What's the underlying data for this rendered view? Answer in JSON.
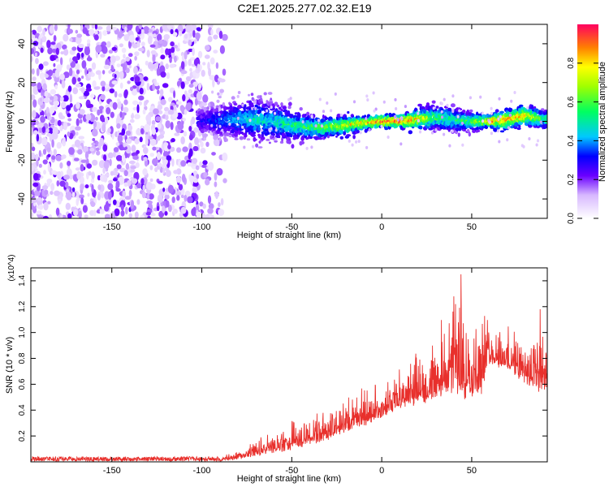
{
  "title": "C2E1.2025.277.02.32.E19",
  "colorbar": {
    "label": "Normalized spectral amplitude",
    "range": [
      0,
      1
    ],
    "ticks": [
      0.0,
      0.2,
      0.4,
      0.6,
      0.8
    ],
    "tick_labels": [
      "0.0",
      "0.2",
      "0.4",
      "0.6",
      "0.8"
    ]
  },
  "chart_data": [
    {
      "type": "heatmap",
      "name": "spectrogram",
      "xlabel": "Height of straight line (km)",
      "ylabel": "Frequency (Hz)",
      "xlim": [
        -195,
        92
      ],
      "ylim": [
        -50,
        50
      ],
      "xticks": [
        -150,
        -100,
        -50,
        0,
        50
      ],
      "xtick_labels": [
        "-150",
        "-100",
        "-50",
        "0",
        "50"
      ],
      "yticks": [
        -40,
        -20,
        0,
        20,
        40
      ],
      "ytick_labels": [
        "-40",
        "-20",
        "0",
        "20",
        "40"
      ],
      "noise_region": {
        "x": [
          -195,
          -87
        ],
        "y": [
          -50,
          50
        ],
        "amplitude": [
          0.0,
          0.15
        ]
      },
      "signal_band": {
        "x": [
          -100,
          -80,
          -70,
          -60,
          -50,
          -40,
          -30,
          -20,
          -10,
          0,
          10,
          20,
          30,
          40,
          50,
          60,
          70,
          80,
          90
        ],
        "center_hz": [
          0,
          1,
          1,
          0,
          -2,
          -3,
          -3,
          -2,
          -1,
          0,
          0,
          1,
          2,
          1,
          0,
          0,
          1,
          3,
          1
        ],
        "half_width_hz": [
          5,
          6,
          7,
          6,
          5,
          4,
          3,
          3,
          2,
          2,
          2,
          3,
          4,
          4,
          3,
          2,
          3,
          3,
          3
        ],
        "peak_amplitude": [
          0.3,
          0.45,
          0.5,
          0.5,
          0.55,
          0.6,
          0.7,
          0.75,
          0.85,
          0.95,
          0.95,
          0.85,
          0.6,
          0.55,
          0.6,
          0.9,
          0.9,
          0.85,
          0.6
        ]
      }
    },
    {
      "type": "line",
      "name": "snr",
      "xlabel": "Height of straight line (km)",
      "ylabel": "SNR (10 * v/v)",
      "y_multiplier": "(x10^4)",
      "xlim": [
        -195,
        92
      ],
      "ylim": [
        0,
        1.5
      ],
      "xticks": [
        -150,
        -100,
        -50,
        0,
        50
      ],
      "xtick_labels": [
        "-150",
        "-100",
        "-50",
        "0",
        "50"
      ],
      "yticks": [
        0.2,
        0.4,
        0.6,
        0.8,
        1.0,
        1.2,
        1.4
      ],
      "ytick_labels": [
        "0.2",
        "0.4",
        "0.6",
        "0.8",
        "1.0",
        "1.2",
        "1.4"
      ],
      "color": "#e8302c",
      "envelope": {
        "x": [
          -195,
          -150,
          -100,
          -90,
          -80,
          -70,
          -60,
          -50,
          -40,
          -30,
          -20,
          -10,
          0,
          10,
          20,
          30,
          35,
          40,
          45,
          50,
          55,
          60,
          70,
          80,
          85,
          92
        ],
        "base": [
          0.0,
          0.0,
          0.0,
          0.01,
          0.03,
          0.06,
          0.09,
          0.12,
          0.16,
          0.2,
          0.26,
          0.32,
          0.38,
          0.45,
          0.5,
          0.55,
          0.6,
          0.6,
          0.6,
          0.55,
          0.6,
          0.8,
          0.75,
          0.65,
          0.6,
          0.6
        ],
        "amp": [
          0.02,
          0.02,
          0.02,
          0.03,
          0.05,
          0.08,
          0.1,
          0.14,
          0.15,
          0.15,
          0.18,
          0.2,
          0.18,
          0.2,
          0.3,
          0.28,
          0.4,
          0.45,
          0.6,
          0.5,
          0.45,
          0.2,
          0.2,
          0.25,
          0.35,
          0.25
        ]
      },
      "peaks": [
        {
          "x": 44,
          "y": 1.45
        },
        {
          "x": 40,
          "y": 1.28
        },
        {
          "x": 88,
          "y": 1.18
        },
        {
          "x": 41,
          "y": 1.22
        }
      ]
    }
  ]
}
